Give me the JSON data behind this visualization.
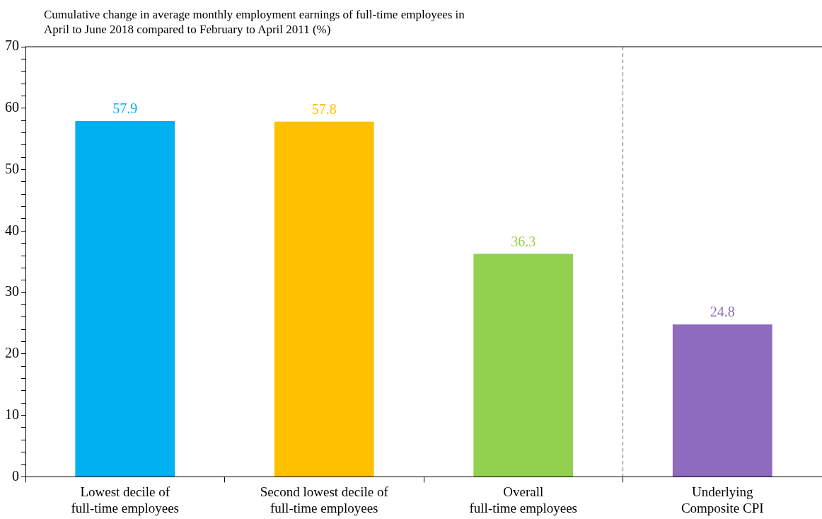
{
  "chart_data": {
    "type": "bar",
    "title": "Cumulative change in average monthly employment earnings of full-time employees in\nApril to June 2018 compared to February to April 2011 (%)",
    "categories": [
      "Lowest decile of\nfull-time employees",
      "Second lowest decile of\nfull-time employees",
      "Overall\nfull-time employees",
      "Underlying\nComposite CPI"
    ],
    "values": [
      57.9,
      57.8,
      36.3,
      24.8
    ],
    "colors": [
      "#00b0f0",
      "#ffc000",
      "#92d050",
      "#8e6bbf"
    ],
    "data_labels": true,
    "ylim": [
      0,
      70
    ],
    "yticks": [
      0,
      {
        "value": 2,
        "label": null
      },
      {
        "value": 4,
        "label": null
      },
      {
        "value": 6,
        "label": null
      },
      {
        "value": 8,
        "label": null
      },
      10,
      {
        "value": 12,
        "label": null
      },
      {
        "value": 14,
        "label": null
      },
      {
        "value": 16,
        "label": null
      },
      {
        "value": 18,
        "label": null
      },
      20,
      {
        "value": 22,
        "label": null
      },
      {
        "value": 24,
        "label": null
      },
      {
        "value": 26,
        "label": null
      },
      {
        "value": 28,
        "label": null
      },
      30,
      {
        "value": 32,
        "label": null
      },
      {
        "value": 34,
        "label": null
      },
      {
        "value": 36,
        "label": null
      },
      {
        "value": 38,
        "label": null
      },
      40,
      {
        "value": 42,
        "label": null
      },
      {
        "value": 44,
        "label": null
      },
      {
        "value": 46,
        "label": null
      },
      {
        "value": 48,
        "label": null
      },
      50,
      {
        "value": 52,
        "label": null
      },
      {
        "value": 54,
        "label": null
      },
      {
        "value": 56,
        "label": null
      },
      {
        "value": 58,
        "label": null
      },
      60,
      {
        "value": 62,
        "label": null
      },
      {
        "value": 64,
        "label": null
      },
      {
        "value": 66,
        "label": null
      },
      {
        "value": 68,
        "label": null
      },
      70
    ],
    "grid": false,
    "legend": false
  }
}
